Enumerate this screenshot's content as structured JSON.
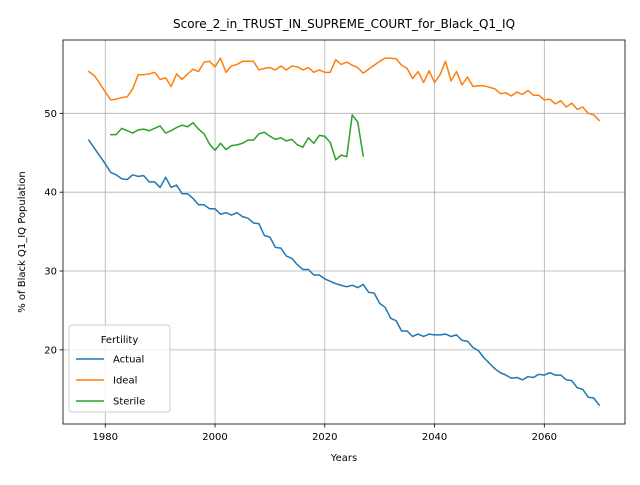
{
  "chart_data": {
    "type": "line",
    "title": "Score_2_in_TRUST_IN_SUPREME_COURT_for_Black_Q1_IQ",
    "xlabel": "Years",
    "ylabel": "% of Black Q1_IQ Population",
    "xlim": [
      1972.3,
      2074.7
    ],
    "ylim": [
      10.6,
      59.3
    ],
    "x_ticks": [
      1980,
      2000,
      2020,
      2040,
      2060
    ],
    "y_ticks": [
      20,
      30,
      40,
      50
    ],
    "grid": true,
    "legend": {
      "title": "Fertility",
      "placement": "lower-left"
    },
    "series": [
      {
        "name": "Actual",
        "color": "#1f77b4",
        "x": [
          1977,
          1978,
          1979,
          1980,
          1981,
          1982,
          1983,
          1984,
          1985,
          1986,
          1987,
          1988,
          1989,
          1990,
          1991,
          1992,
          1993,
          1994,
          1995,
          1996,
          1997,
          1998,
          1999,
          2000,
          2001,
          2002,
          2003,
          2004,
          2005,
          2006,
          2007,
          2008,
          2009,
          2010,
          2011,
          2012,
          2013,
          2014,
          2015,
          2016,
          2017,
          2018,
          2019,
          2020,
          2021,
          2022,
          2023,
          2024,
          2025,
          2026,
          2027,
          2028,
          2029,
          2030,
          2031,
          2032,
          2033,
          2034,
          2035,
          2036,
          2037,
          2038,
          2039,
          2040,
          2041,
          2042,
          2043,
          2044,
          2045,
          2046,
          2047,
          2048,
          2049,
          2050,
          2051,
          2052,
          2053,
          2054,
          2055,
          2056,
          2057,
          2058,
          2059,
          2060,
          2061,
          2062,
          2063,
          2064,
          2065,
          2066,
          2067,
          2068,
          2069,
          2070
        ],
        "y": [
          46.6,
          45.6,
          44.6,
          43.6,
          42.5,
          42.2,
          41.7,
          41.6,
          42.2,
          42.0,
          42.1,
          41.3,
          41.3,
          40.6,
          41.9,
          40.6,
          40.9,
          39.8,
          39.8,
          39.2,
          38.4,
          38.4,
          37.9,
          37.9,
          37.2,
          37.4,
          37.1,
          37.4,
          36.9,
          36.7,
          36.1,
          36.0,
          34.5,
          34.3,
          33.0,
          32.9,
          31.9,
          31.6,
          30.8,
          30.2,
          30.2,
          29.5,
          29.5,
          29.0,
          28.7,
          28.4,
          28.2,
          28.0,
          28.2,
          27.9,
          28.3,
          27.3,
          27.2,
          25.9,
          25.4,
          24.0,
          23.7,
          22.4,
          22.4,
          21.7,
          22.0,
          21.7,
          22.0,
          21.9,
          21.9,
          22.0,
          21.7,
          21.9,
          21.2,
          21.1,
          20.3,
          19.9,
          19.0,
          18.3,
          17.6,
          17.1,
          16.8,
          16.4,
          16.5,
          16.2,
          16.6,
          16.5,
          16.9,
          16.8,
          17.1,
          16.8,
          16.8,
          16.2,
          16.1,
          15.2,
          15.0,
          14.0,
          13.9,
          13.0
        ]
      },
      {
        "name": "Ideal",
        "color": "#ff7f0e",
        "x": [
          1977,
          1978,
          1979,
          1980,
          1981,
          1982,
          1983,
          1984,
          1985,
          1986,
          1987,
          1988,
          1989,
          1990,
          1991,
          1992,
          1993,
          1994,
          1995,
          1996,
          1997,
          1998,
          1999,
          2000,
          2001,
          2002,
          2003,
          2004,
          2005,
          2006,
          2007,
          2008,
          2009,
          2010,
          2011,
          2012,
          2013,
          2014,
          2015,
          2016,
          2017,
          2018,
          2019,
          2020,
          2021,
          2022,
          2023,
          2024,
          2025,
          2026,
          2027,
          2028,
          2029,
          2030,
          2031,
          2032,
          2033,
          2034,
          2035,
          2036,
          2037,
          2038,
          2039,
          2040,
          2041,
          2042,
          2043,
          2044,
          2045,
          2046,
          2047,
          2048,
          2049,
          2050,
          2051,
          2052,
          2053,
          2054,
          2055,
          2056,
          2057,
          2058,
          2059,
          2060,
          2061,
          2062,
          2063,
          2064,
          2065,
          2066,
          2067,
          2068,
          2069,
          2070
        ],
        "y": [
          55.3,
          54.8,
          53.8,
          52.7,
          51.7,
          51.8,
          52.0,
          52.1,
          53.1,
          54.9,
          54.9,
          55.0,
          55.2,
          54.3,
          54.5,
          53.4,
          55.0,
          54.3,
          55.0,
          55.6,
          55.3,
          56.5,
          56.6,
          55.9,
          57.0,
          55.2,
          56.0,
          56.2,
          56.6,
          56.6,
          56.6,
          55.5,
          55.7,
          55.8,
          55.5,
          56.0,
          55.5,
          56.0,
          55.9,
          55.5,
          55.8,
          55.2,
          55.5,
          55.2,
          55.2,
          56.8,
          56.2,
          56.5,
          56.1,
          55.8,
          55.1,
          55.6,
          56.1,
          56.6,
          57.0,
          57.0,
          56.9,
          56.1,
          55.7,
          54.4,
          55.3,
          53.9,
          55.4,
          53.9,
          54.9,
          56.6,
          54.1,
          55.3,
          53.6,
          54.6,
          53.4,
          53.5,
          53.5,
          53.3,
          53.1,
          52.5,
          52.6,
          52.2,
          52.7,
          52.4,
          52.9,
          52.3,
          52.3,
          51.7,
          51.8,
          51.2,
          51.6,
          50.8,
          51.3,
          50.5,
          50.8,
          50.0,
          49.8,
          49.1
        ]
      },
      {
        "name": "Sterile",
        "color": "#2ca02c",
        "x": [
          1981,
          1982,
          1983,
          1984,
          1985,
          1986,
          1987,
          1988,
          1989,
          1990,
          1991,
          1992,
          1993,
          1994,
          1995,
          1996,
          1997,
          1998,
          1999,
          2000,
          2001,
          2002,
          2003,
          2004,
          2005,
          2006,
          2007,
          2008,
          2009,
          2010,
          2011,
          2012,
          2013,
          2014,
          2015,
          2016,
          2017,
          2018,
          2019,
          2020,
          2021,
          2022,
          2023,
          2024,
          2025,
          2026,
          2027
        ],
        "y": [
          47.3,
          47.3,
          48.1,
          47.8,
          47.5,
          47.9,
          48.0,
          47.8,
          48.1,
          48.4,
          47.5,
          47.8,
          48.2,
          48.5,
          48.3,
          48.8,
          48.0,
          47.4,
          46.1,
          45.3,
          46.2,
          45.4,
          45.9,
          46.0,
          46.2,
          46.6,
          46.6,
          47.4,
          47.6,
          47.1,
          46.7,
          46.9,
          46.5,
          46.7,
          46.0,
          45.7,
          46.9,
          46.2,
          47.2,
          47.1,
          46.3,
          44.1,
          44.7,
          44.5,
          49.8,
          48.9,
          44.6
        ]
      }
    ]
  }
}
